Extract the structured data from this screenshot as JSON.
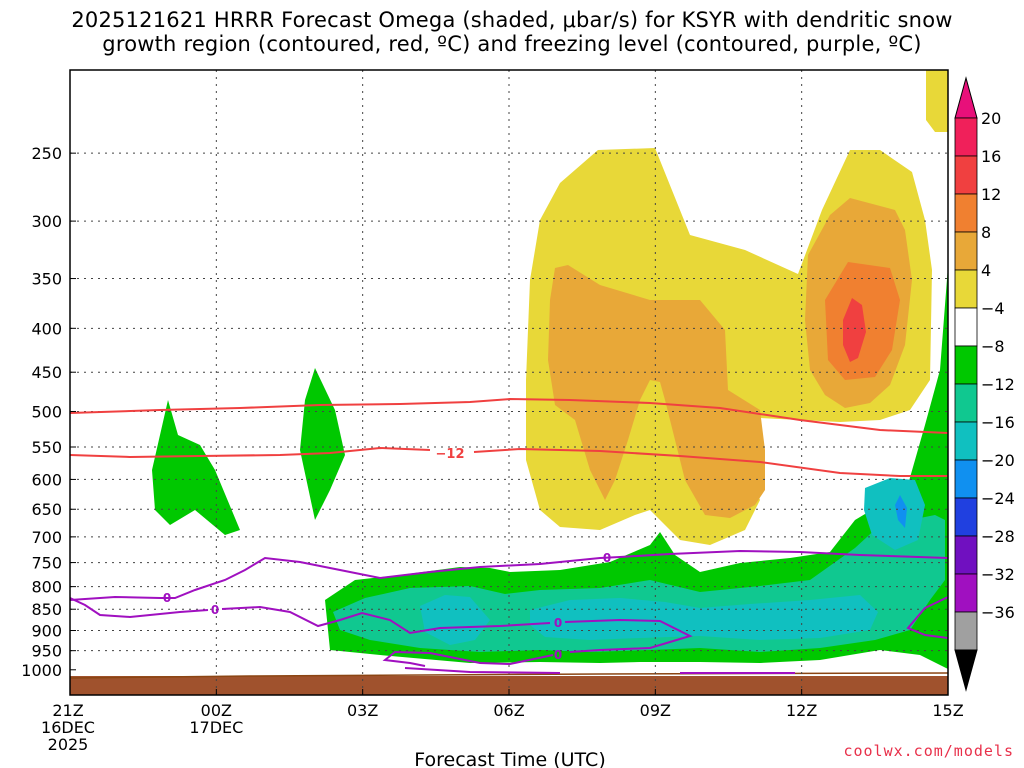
{
  "chart_data": {
    "type": "heatmap",
    "title_line1": "2025121621 HRRR Forecast Omega (shaded, μbar/s) for KSYR with dendritic snow",
    "title_line2": "growth region (contoured, red, ºC) and freezing level (contoured, purple, ºC)",
    "xlabel": "Forecast Time (UTC)",
    "ylabel": "",
    "x_ticks": [
      {
        "hour": 0,
        "label": [
          "21Z",
          "16DEC",
          "2025"
        ]
      },
      {
        "hour": 3,
        "label": [
          "00Z",
          "17DEC"
        ]
      },
      {
        "hour": 6,
        "label": [
          "03Z"
        ]
      },
      {
        "hour": 9,
        "label": [
          "06Z"
        ]
      },
      {
        "hour": 12,
        "label": [
          "09Z"
        ]
      },
      {
        "hour": 15,
        "label": [
          "12Z"
        ]
      },
      {
        "hour": 18,
        "label": [
          "15Z"
        ]
      }
    ],
    "y_ticks": [
      250,
      300,
      350,
      400,
      450,
      500,
      550,
      600,
      650,
      700,
      750,
      800,
      850,
      900,
      950,
      1000
    ],
    "x_range_hours": [
      0,
      18
    ],
    "y_range_hpa": [
      1000,
      200
    ],
    "grid": true,
    "colorbar": {
      "labels": [
        "20",
        "16",
        "12",
        "8",
        "4",
        "−4",
        "−8",
        "−12",
        "−16",
        "−20",
        "−24",
        "−28",
        "−32",
        "−36"
      ],
      "colors": [
        "#f0205a",
        "#f04040",
        "#f08030",
        "#e8a838",
        "#e8d838",
        "#ffffff",
        "#00c800",
        "#10c890",
        "#10c0c0",
        "#1090f0",
        "#2040e0",
        "#7010c0",
        "#a010c0",
        "#a0a0a0"
      ],
      "top_arrow_color": "#e8107a",
      "bottom_arrow_color": "#000000"
    },
    "contour_labels": {
      "dgz": "−12",
      "freezing": [
        "0",
        "0",
        "0",
        "0",
        "0"
      ]
    },
    "colors": {
      "green": "#00c800",
      "teal": "#10c890",
      "cyan": "#10c0c0",
      "blue": "#1090f0",
      "yellow": "#e8d838",
      "orange_light": "#e8a838",
      "orange": "#f08030",
      "red": "#f04040",
      "ground": "#a0522d",
      "dgz_line": "#f04040",
      "freezing_line": "#a010c0"
    }
  },
  "credit": "coolwx.com/models"
}
